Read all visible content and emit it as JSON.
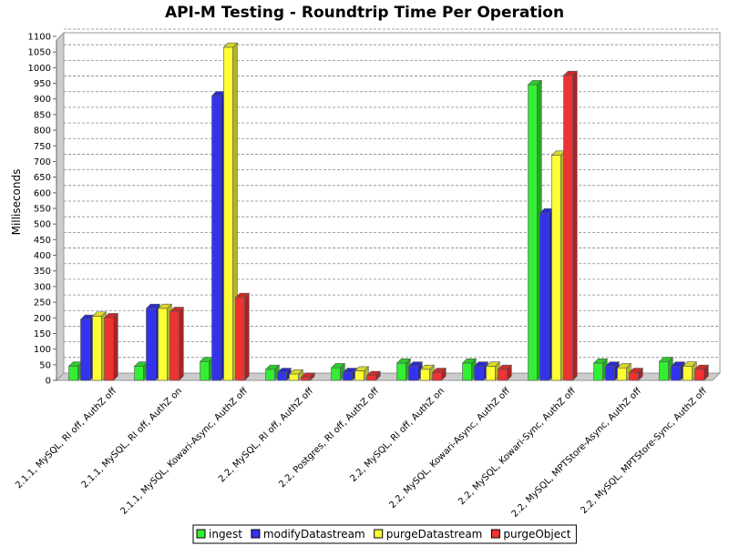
{
  "chart_data": {
    "type": "bar",
    "title": "API-M Testing - Roundtrip Time Per Operation",
    "xlabel": "",
    "ylabel": "Milliseconds",
    "ylim": [
      0,
      1150
    ],
    "yticks": [
      0,
      50,
      100,
      150,
      200,
      250,
      300,
      350,
      400,
      450,
      500,
      550,
      600,
      650,
      700,
      750,
      800,
      850,
      900,
      950,
      1000,
      1050,
      1100
    ],
    "grid": true,
    "style": "3d",
    "legend_position": "bottom",
    "categories": [
      "2.1.1, MySQL, RI off, AuthZ off",
      "2.1.1, MySQL, RI off, AuthZ on",
      "2.1.1, MySQL, Kowari-Async, AuthZ off",
      "2.2, MySQL, RI off, AuthZ off",
      "2.2, Postgres, RI off, AuthZ off",
      "2.2, MySQL, RI off, AuthZ on",
      "2.2, MySQL, Kowari-Async, AuthZ off",
      "2.2, MySQL, Kowari-Sync, AuthZ off",
      "2.2, MySQL, MPTStore-Async, AuthZ off",
      "2.2, MySQL, MPTStore-Sync, AuthZ off"
    ],
    "series": [
      {
        "name": "ingest",
        "color": "#33ee33",
        "values": [
          45,
          45,
          60,
          35,
          40,
          55,
          55,
          945,
          55,
          60
        ]
      },
      {
        "name": "modifyDatastream",
        "color": "#3333ee",
        "values": [
          195,
          230,
          910,
          25,
          25,
          45,
          45,
          535,
          45,
          45
        ]
      },
      {
        "name": "purgeDatastream",
        "color": "#ffff33",
        "values": [
          205,
          230,
          1065,
          20,
          30,
          35,
          45,
          720,
          40,
          45
        ]
      },
      {
        "name": "purgeObject",
        "color": "#ee3333",
        "values": [
          200,
          220,
          265,
          10,
          15,
          25,
          35,
          975,
          25,
          35
        ]
      }
    ]
  }
}
